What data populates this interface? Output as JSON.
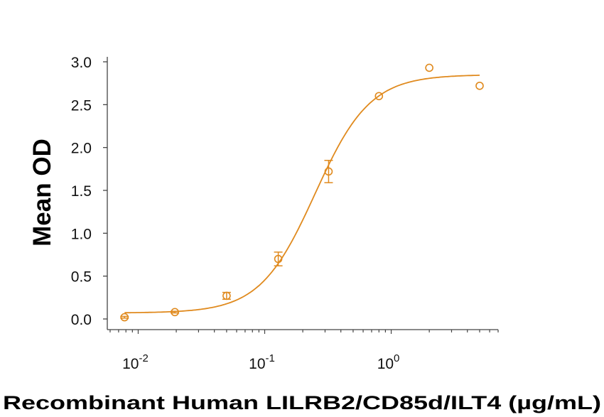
{
  "chart_data": {
    "type": "scatter",
    "title": "",
    "xlabel": "Recombinant Human LILRB2/CD85d/ILT4 (µg/mL)",
    "ylabel": "Mean OD",
    "xscale": "log",
    "xlim": [
      0.0057,
      7.0
    ],
    "ylim": [
      0.0,
      3.0
    ],
    "grid": false,
    "legend": null,
    "x_ticks": [
      {
        "value": 0.01,
        "base": "10",
        "exp": "-2"
      },
      {
        "value": 0.1,
        "base": "10",
        "exp": "-1"
      },
      {
        "value": 1,
        "base": "10",
        "exp": "0"
      }
    ],
    "y_ticks": [
      "0.0",
      "0.5",
      "1.0",
      "1.5",
      "2.0",
      "2.5",
      "3.0"
    ],
    "series": [
      {
        "name": "Mean OD",
        "color": "#E08A1E",
        "marker": "open-circle",
        "points": [
          {
            "x": 0.0078,
            "y": 0.02,
            "err": 0.01
          },
          {
            "x": 0.0195,
            "y": 0.08,
            "err": 0.01
          },
          {
            "x": 0.05,
            "y": 0.27,
            "err": 0.04
          },
          {
            "x": 0.128,
            "y": 0.7,
            "err": 0.08
          },
          {
            "x": 0.32,
            "y": 1.72,
            "err": 0.13
          },
          {
            "x": 0.8,
            "y": 2.6,
            "err": 0.0
          },
          {
            "x": 2.0,
            "y": 2.93,
            "err": 0.0
          },
          {
            "x": 5.0,
            "y": 2.72,
            "err": 0.0
          }
        ]
      }
    ],
    "fit": {
      "type": "4PL",
      "bottom": 0.07,
      "top": 2.85,
      "ec50": 0.25,
      "hill": 2.0,
      "x_range": [
        0.0078,
        5.0
      ],
      "color": "#E08A1E"
    }
  }
}
